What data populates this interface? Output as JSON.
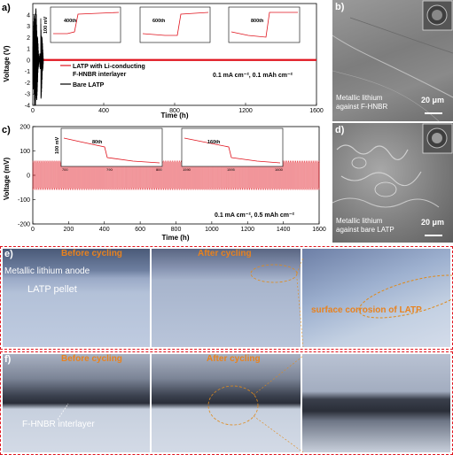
{
  "panel_a": {
    "label": "a)",
    "chart_data": {
      "type": "line",
      "xlabel": "Time (h)",
      "ylabel": "Voltage (V)",
      "xlim": [
        0,
        1600
      ],
      "ylim": [
        -4,
        5
      ],
      "xticks": [
        "0",
        "400",
        "800",
        "1200",
        "1600"
      ],
      "yticks": [
        "4",
        "3",
        "2",
        "1",
        "0",
        "-1",
        "-2",
        "-3",
        "-4"
      ],
      "series": [
        {
          "name": "LATP with Li-conducting F-HNBR interlayer",
          "color": "#e0141e",
          "x": [
            0,
            1600
          ],
          "y": [
            0.01,
            0.01
          ]
        },
        {
          "name": "Bare LATP",
          "color": "#000000",
          "x": [
            0,
            5,
            10,
            20,
            30,
            40,
            50,
            60
          ],
          "y": [
            0,
            2.5,
            -3.0,
            4.8,
            -4.0,
            3.5,
            -2.5,
            0
          ]
        }
      ],
      "legend": [
        "LATP with Li-conducting",
        "F-HNBR interlayer",
        "Bare LATP"
      ],
      "annotation": "0.1 mA cm⁻², 0.1 mAh cm⁻²",
      "insets": [
        {
          "label": "400th",
          "ylabel": "100 mV"
        },
        {
          "label": "600th",
          "ylabel": ""
        },
        {
          "label": "800th",
          "ylabel": ""
        }
      ]
    }
  },
  "panel_c": {
    "label": "c)",
    "chart_data": {
      "type": "line",
      "xlabel": "Time (h)",
      "ylabel": "Voltage (mV)",
      "xlim": [
        0,
        1600
      ],
      "ylim": [
        -200,
        200
      ],
      "xticks": [
        "0",
        "200",
        "400",
        "600",
        "800",
        "1000",
        "1200",
        "1400",
        "1600"
      ],
      "yticks": [
        "200",
        "100",
        "0",
        "-100",
        "-200"
      ],
      "series": [
        {
          "name": "",
          "color": "#e0141e",
          "amplitude": 60,
          "cycles": 160
        }
      ],
      "annotation": "0.1 mA cm⁻², 0.5 mAh cm⁻²",
      "insets": [
        {
          "label": "80th",
          "ylabel": "100 mV",
          "xticks": [
            "700",
            "790",
            "800"
          ]
        },
        {
          "label": "160th",
          "ylabel": "",
          "xticks": [
            "1590",
            "1595",
            "1600"
          ]
        }
      ]
    }
  },
  "panel_b": {
    "label": "b)",
    "caption_line1": "Metallic lithium",
    "caption_line2": "against F-HNBR",
    "scale": "20 μm"
  },
  "panel_d": {
    "label": "d)",
    "caption_line1": "Metallic lithium",
    "caption_line2": "against bare LATP",
    "scale": "20 μm"
  },
  "panel_e": {
    "label": "e)",
    "before": "Before cycling",
    "after": "After cycling",
    "anode": "Metallic lithium anode",
    "pellet": "LATP pellet",
    "corrosion": "surface corrosion of LATP"
  },
  "panel_f": {
    "label": "f)",
    "before": "Before cycling",
    "after": "After cycling",
    "interlayer": "F-HNBR interlayer"
  }
}
